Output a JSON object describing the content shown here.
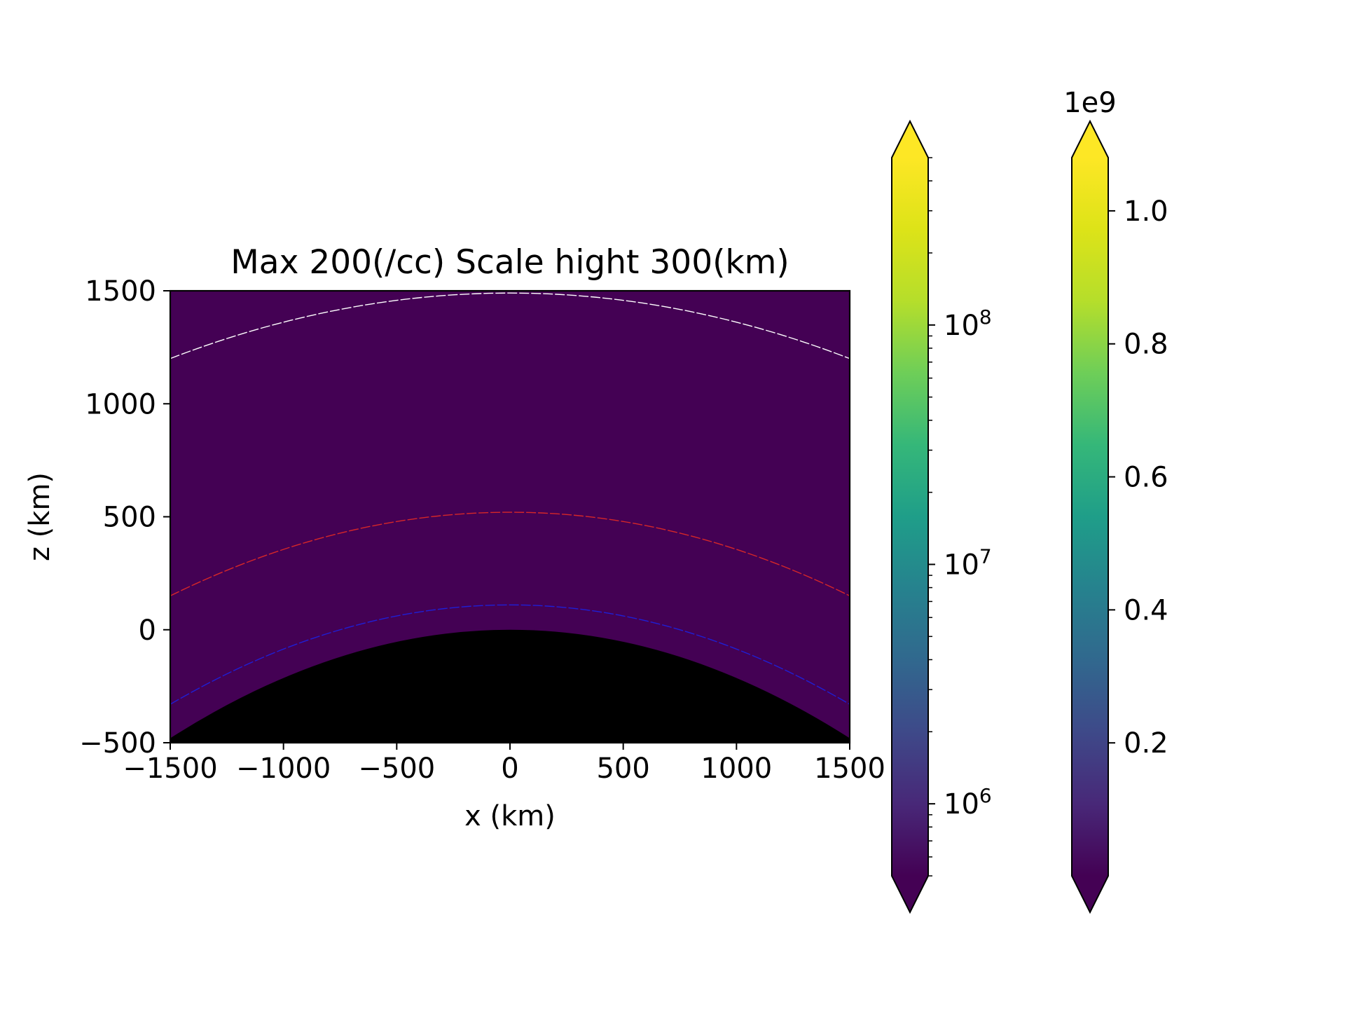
{
  "chart_data": {
    "type": "heatmap",
    "title": "Max 200(/cc) Scale hight 300(km)",
    "xlabel": "x (km)",
    "ylabel": "z (km)",
    "xlim": [
      -1500,
      1500
    ],
    "ylim": [
      -500,
      1500
    ],
    "xticks": [
      -1500,
      -1000,
      -500,
      0,
      500,
      1000,
      1500
    ],
    "xtick_labels": [
      "−1500",
      "−1000",
      "−500",
      "0",
      "500",
      "1000",
      "1500"
    ],
    "yticks": [
      -500,
      0,
      500,
      1000,
      1500
    ],
    "ytick_labels": [
      "−500",
      "0",
      "500",
      "1000",
      "1500"
    ],
    "colormap": "viridis",
    "grid": false,
    "planet_surface": {
      "apex_z": 0,
      "edge_z": -480,
      "color": "#000000"
    },
    "contours": [
      {
        "color": "#ffffff",
        "apex_z": 1490,
        "edge_z": 1200,
        "style": "dashed"
      },
      {
        "color": "#d62728",
        "apex_z": 520,
        "edge_z": 150,
        "style": "dashed"
      },
      {
        "color": "#1f1fd6",
        "apex_z": 110,
        "edge_z": -330,
        "style": "dashed"
      }
    ],
    "colorbars": [
      {
        "scale": "log",
        "range": [
          500000,
          500000000
        ],
        "extend": "both",
        "major_ticks": [
          1000000,
          10000000,
          100000000
        ],
        "tick_labels": [
          {
            "base": "10",
            "exp": "6"
          },
          {
            "base": "10",
            "exp": "7"
          },
          {
            "base": "10",
            "exp": "8"
          }
        ]
      },
      {
        "scale": "linear",
        "range": [
          0,
          1.08
        ],
        "extend": "both",
        "offset_label": "1e9",
        "ticks": [
          0.2,
          0.4,
          0.6,
          0.8,
          1.0
        ],
        "tick_labels": [
          "0.2",
          "0.4",
          "0.6",
          "0.8",
          "1.0"
        ]
      }
    ]
  }
}
